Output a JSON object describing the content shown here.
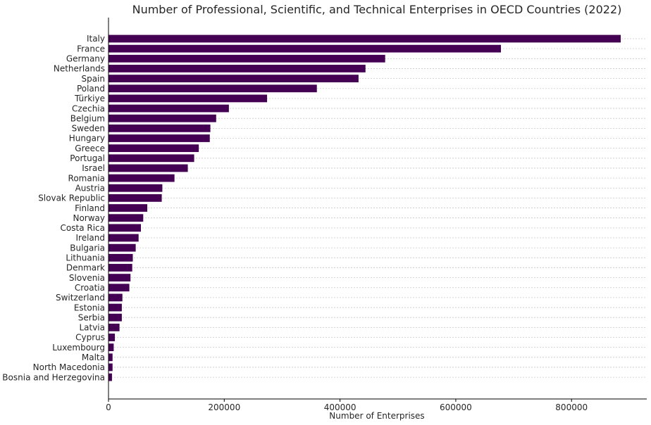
{
  "chart_data": {
    "type": "bar",
    "orientation": "horizontal",
    "title": "Number of Professional, Scientific, and Technical Enterprises in OECD Countries (2022)",
    "xlabel": "Number of Enterprises",
    "ylabel": "",
    "xlim": [
      0,
      930000
    ],
    "xticks": [
      0,
      200000,
      400000,
      600000,
      800000
    ],
    "xtick_labels": [
      "0",
      "200000",
      "400000",
      "600000",
      "800000"
    ],
    "grid": "horizontal dashed",
    "bar_color": "#440154",
    "categories": [
      "Italy",
      "France",
      "Germany",
      "Netherlands",
      "Spain",
      "Poland",
      "Türkiye",
      "Czechia",
      "Belgium",
      "Sweden",
      "Hungary",
      "Greece",
      "Portugal",
      "Israel",
      "Romania",
      "Austria",
      "Slovak Republic",
      "Finland",
      "Norway",
      "Costa Rica",
      "Ireland",
      "Bulgaria",
      "Lithuania",
      "Denmark",
      "Slovenia",
      "Croatia",
      "Switzerland",
      "Estonia",
      "Serbia",
      "Latvia",
      "Cyprus",
      "Luxembourg",
      "Malta",
      "North Macedonia",
      "Bosnia and Herzegovina"
    ],
    "values": [
      885000,
      678000,
      478000,
      444000,
      432000,
      360000,
      274000,
      208000,
      186000,
      176000,
      175000,
      156000,
      148000,
      137000,
      114000,
      93000,
      92000,
      67000,
      60000,
      56000,
      52000,
      47000,
      42000,
      41000,
      38000,
      36000,
      24000,
      23000,
      23000,
      19000,
      11000,
      9000,
      7000,
      7000,
      6000
    ]
  }
}
